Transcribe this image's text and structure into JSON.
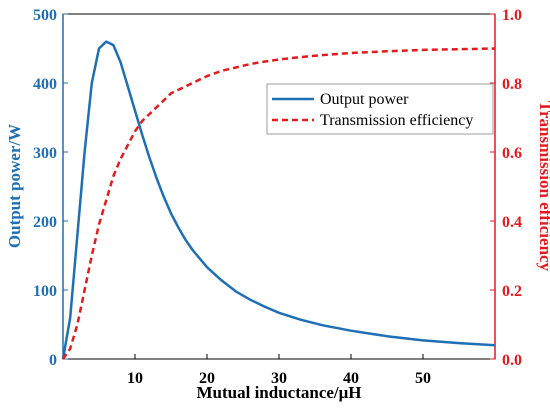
{
  "chart_data": {
    "type": "line",
    "title": "",
    "xlabel": "Mutual inductance/μH",
    "ylabel_left": "Output power/W",
    "ylabel_right": "Transmission efficiency",
    "xlim": [
      0,
      60
    ],
    "ylim_left": [
      0,
      500
    ],
    "ylim_right": [
      0,
      1.0
    ],
    "x_ticks": [
      10,
      20,
      30,
      40,
      50
    ],
    "y_left_ticks": [
      0,
      100,
      200,
      300,
      400,
      500
    ],
    "y_right_ticks": [
      "0.0",
      "0.2",
      "0.4",
      "0.6",
      "0.8",
      "1.0"
    ],
    "grid": false,
    "legend_position": "upper-right",
    "series": [
      {
        "name": "Output power",
        "axis": "left",
        "color": "#1f6fb5",
        "style": "solid",
        "x": [
          0,
          1,
          2,
          3,
          4,
          5,
          6,
          7,
          8,
          9,
          10,
          11,
          12,
          13,
          14,
          15,
          16,
          17,
          18,
          20,
          22,
          24,
          26,
          28,
          30,
          33,
          36,
          40,
          45,
          50,
          55,
          60
        ],
        "y": [
          0,
          60,
          180,
          300,
          400,
          450,
          460,
          455,
          430,
          395,
          360,
          325,
          292,
          262,
          235,
          211,
          191,
          173,
          158,
          133,
          114,
          98,
          86,
          76,
          67,
          57,
          49,
          41,
          33,
          27,
          23,
          20
        ]
      },
      {
        "name": "Transmission efficiency",
        "axis": "right",
        "color": "#e41a1c",
        "style": "dashed",
        "x": [
          0,
          1,
          2,
          3,
          4,
          5,
          6,
          7,
          8,
          9,
          10,
          11,
          12,
          13,
          14,
          15,
          16,
          18,
          20,
          22,
          24,
          26,
          28,
          30,
          33,
          36,
          40,
          45,
          50,
          55,
          60
        ],
        "y": [
          0,
          0.03,
          0.1,
          0.2,
          0.3,
          0.39,
          0.46,
          0.53,
          0.58,
          0.62,
          0.66,
          0.69,
          0.71,
          0.73,
          0.75,
          0.77,
          0.78,
          0.8,
          0.82,
          0.835,
          0.845,
          0.855,
          0.862,
          0.868,
          0.875,
          0.881,
          0.887,
          0.892,
          0.896,
          0.898,
          0.9
        ]
      }
    ]
  }
}
